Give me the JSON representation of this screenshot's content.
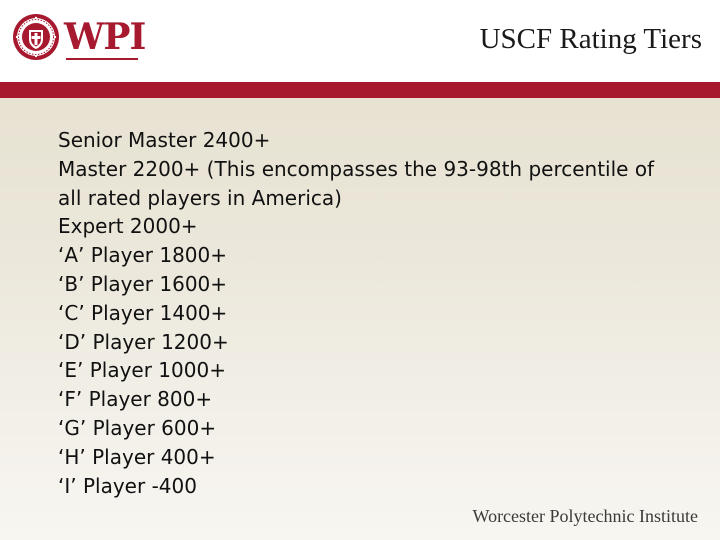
{
  "header": {
    "logo_text": "WPI",
    "title": "USCF Rating Tiers"
  },
  "tiers": [
    "Senior Master 2400+",
    "Master 2200+ (This encompasses the 93-98th percentile of all rated players in America)",
    "Expert 2000+",
    "‘A’ Player 1800+",
    "‘B’ Player 1600+",
    "‘C’ Player 1400+",
    "‘D’ Player 1200+",
    "‘E’ Player 1000+",
    "‘F’ Player 800+",
    "‘G’ Player 600+",
    "‘H’ Player 400+",
    "‘I’ Player -400"
  ],
  "footer": {
    "institution": "Worcester Polytechnic Institute"
  },
  "colors": {
    "brand_crimson": "#a6192e",
    "panel_beige": "#e9e5d8"
  },
  "icons": {
    "seal": "wpi-seal-icon"
  }
}
